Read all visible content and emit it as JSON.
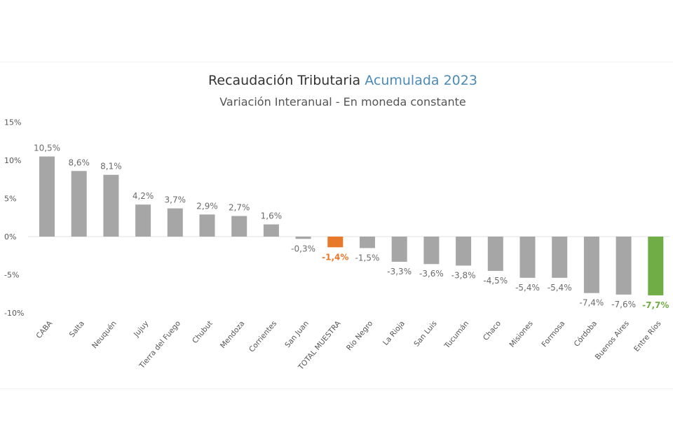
{
  "title_main": "Recaudación  Tributaria",
  "title_highlight": "Acumulada 2023",
  "subtitle": "Variación Interanual - En moneda constante",
  "chart_data": {
    "type": "bar",
    "title": "Recaudación Tributaria Acumulada 2023",
    "subtitle": "Variación Interanual - En moneda constante",
    "xlabel": "",
    "ylabel": "",
    "ylim": [
      -10,
      15
    ],
    "yticks": [
      15,
      10,
      5,
      0,
      -5,
      -10
    ],
    "ytick_labels": [
      "15%",
      "10%",
      "5%",
      "0%",
      "-5%",
      "-10%"
    ],
    "grid": false,
    "categories": [
      "CABA",
      "Salta",
      "Neuquén",
      "Jujuy",
      "Tierra del Fuego",
      "Chubut",
      "Mendoza",
      "Corrientes",
      "San Juan",
      "TOTAL MUESTRA",
      "Río Negro",
      "La Rioja",
      "San Luis",
      "Tucumán",
      "Chaco",
      "Misiones",
      "Formosa",
      "Córdoba",
      "Buenos Aires",
      "Entre Ríos"
    ],
    "values": [
      10.5,
      8.6,
      8.1,
      4.2,
      3.7,
      2.9,
      2.7,
      1.6,
      -0.3,
      -1.4,
      -1.5,
      -3.3,
      -3.6,
      -3.8,
      -4.5,
      -5.4,
      -5.4,
      -7.4,
      -7.6,
      -7.7
    ],
    "value_labels": [
      "10,5%",
      "8,6%",
      "8,1%",
      "4,2%",
      "3,7%",
      "2,9%",
      "2,7%",
      "1,6%",
      "-0,3%",
      "-1,4%",
      "-1,5%",
      "-3,3%",
      "-3,6%",
      "-3,8%",
      "-4,5%",
      "-5,4%",
      "-5,4%",
      "-7,4%",
      "-7,6%",
      "-7,7%"
    ],
    "colors": {
      "default": "#a6a6a6",
      "TOTAL MUESTRA": "#e8792b",
      "Entre Ríos": "#70ad47"
    }
  }
}
